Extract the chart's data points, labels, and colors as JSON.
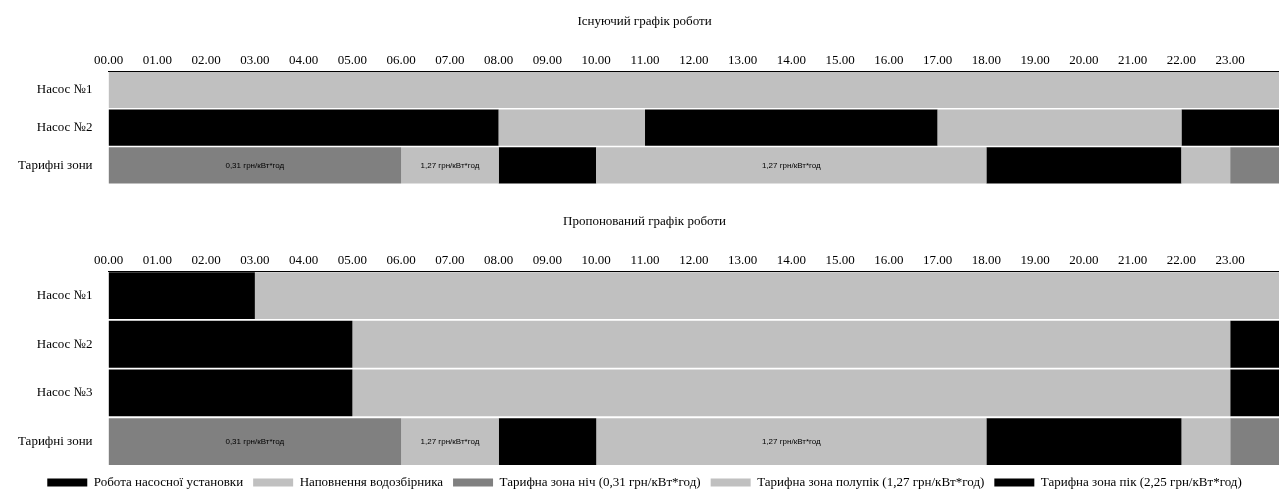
{
  "chart_data": [
    {
      "type": "bar",
      "orientation": "horizontal",
      "title": "Існуючий графік роботи",
      "categories": [
        "Насос №1",
        "Насос №2",
        "Тарифні зони"
      ],
      "xlim": [
        0,
        24
      ],
      "xticks": [
        {
          "value": 0,
          "label": "00.00"
        },
        {
          "value": 1,
          "label": "01.00"
        },
        {
          "value": 2,
          "label": "02.00"
        },
        {
          "value": 3,
          "label": "03.00"
        },
        {
          "value": 4,
          "label": "04.00"
        },
        {
          "value": 5,
          "label": "05.00"
        },
        {
          "value": 6,
          "label": "06.00"
        },
        {
          "value": 7,
          "label": "07.00"
        },
        {
          "value": 8,
          "label": "08.00"
        },
        {
          "value": 9,
          "label": "09.00"
        },
        {
          "value": 10,
          "label": "10.00"
        },
        {
          "value": 11,
          "label": "11.00"
        },
        {
          "value": 12,
          "label": "12.00"
        },
        {
          "value": 13,
          "label": "13.00"
        },
        {
          "value": 14,
          "label": "14.00"
        },
        {
          "value": 15,
          "label": "15.00"
        },
        {
          "value": 16,
          "label": "16.00"
        },
        {
          "value": 17,
          "label": "17.00"
        },
        {
          "value": 18,
          "label": "18.00"
        },
        {
          "value": 19,
          "label": "19.00"
        },
        {
          "value": 20,
          "label": "20.00"
        },
        {
          "value": 21,
          "label": "21.00"
        },
        {
          "value": 22,
          "label": "22.00"
        },
        {
          "value": 23,
          "label": "23.00"
        }
      ],
      "annotations": [
        {
          "text": "0,31 грн/кВт*год",
          "x": 3,
          "y": "Тарифні зони"
        },
        {
          "text": "1,27 грн/кВт*год",
          "x": 7,
          "y": "Тарифні зони"
        },
        {
          "text": "1,27 грн/кВт*год",
          "x": 14,
          "y": "Тарифні зони"
        }
      ],
      "series": [
        {
          "color": "#c0c0c0",
          "values": [
            24,
            3,
            null
          ],
          "base": [
            0,
            8,
            null
          ]
        },
        {
          "color": "#c0c0c0",
          "values": [
            null,
            5,
            null
          ],
          "base": [
            null,
            17,
            null
          ]
        },
        {
          "color": "#000000",
          "values": [
            null,
            8,
            null
          ],
          "base": [
            null,
            0,
            null
          ]
        },
        {
          "color": "#000000",
          "values": [
            null,
            6,
            null
          ],
          "base": [
            null,
            11,
            null
          ]
        },
        {
          "color": "#000000",
          "values": [
            null,
            2,
            null
          ],
          "base": [
            null,
            22,
            null
          ]
        },
        {
          "color": "#808080",
          "values": [
            null,
            null,
            6
          ],
          "base": [
            null,
            null,
            0
          ]
        },
        {
          "color": "#808080",
          "values": [
            null,
            null,
            1
          ],
          "base": [
            null,
            null,
            23
          ]
        },
        {
          "color": "#c0c0c0",
          "values": [
            null,
            null,
            2
          ],
          "base": [
            null,
            null,
            6
          ]
        },
        {
          "color": "#c0c0c0",
          "values": [
            null,
            null,
            8
          ],
          "base": [
            null,
            null,
            10
          ]
        },
        {
          "color": "#c0c0c0",
          "values": [
            null,
            null,
            1
          ],
          "base": [
            null,
            null,
            22
          ]
        },
        {
          "color": "#000000",
          "values": [
            null,
            null,
            2
          ],
          "base": [
            null,
            null,
            8
          ]
        },
        {
          "color": "#000000",
          "values": [
            null,
            null,
            4
          ],
          "base": [
            null,
            null,
            18
          ]
        }
      ]
    },
    {
      "type": "bar",
      "orientation": "horizontal",
      "title": "Пропонований графік роботи",
      "categories": [
        "Насос №1",
        "Насос №2",
        "Насос №3",
        "Тарифні зони"
      ],
      "xlim": [
        0,
        24
      ],
      "xticks": [
        {
          "value": 0,
          "label": "00.00"
        },
        {
          "value": 1,
          "label": "01.00"
        },
        {
          "value": 2,
          "label": "02.00"
        },
        {
          "value": 3,
          "label": "03.00"
        },
        {
          "value": 4,
          "label": "04.00"
        },
        {
          "value": 5,
          "label": "05.00"
        },
        {
          "value": 6,
          "label": "06.00"
        },
        {
          "value": 7,
          "label": "07.00"
        },
        {
          "value": 8,
          "label": "08.00"
        },
        {
          "value": 9,
          "label": "09.00"
        },
        {
          "value": 10,
          "label": "10.00"
        },
        {
          "value": 11,
          "label": "11.00"
        },
        {
          "value": 12,
          "label": "12.00"
        },
        {
          "value": 13,
          "label": "13.00"
        },
        {
          "value": 14,
          "label": "14.00"
        },
        {
          "value": 15,
          "label": "15.00"
        },
        {
          "value": 16,
          "label": "16.00"
        },
        {
          "value": 17,
          "label": "17.00"
        },
        {
          "value": 18,
          "label": "18.00"
        },
        {
          "value": 19,
          "label": "19.00"
        },
        {
          "value": 20,
          "label": "20.00"
        },
        {
          "value": 21,
          "label": "21.00"
        },
        {
          "value": 22,
          "label": "22.00"
        },
        {
          "value": 23,
          "label": "23.00"
        }
      ],
      "legend": "bottom",
      "annotations": [
        {
          "text": "0,31 грн/кВт*год",
          "x": 3,
          "y": "Тарифні зони"
        },
        {
          "text": "1,27 грн/кВт*год",
          "x": 7,
          "y": "Тарифні зони"
        },
        {
          "text": "1,27 грн/кВт*год",
          "x": 14,
          "y": "Тарифні зони"
        }
      ],
      "series": [
        {
          "name": "Робота насосної установки",
          "color": "#000000",
          "values": [
            3,
            5,
            5,
            null
          ],
          "base": [
            0,
            0,
            0,
            null
          ]
        },
        {
          "name": "Наповнення водозбірника",
          "color": "#c0c0c0",
          "values": [
            21,
            18,
            18,
            null
          ],
          "base": [
            3,
            5,
            5,
            null
          ]
        },
        {
          "color": "#000000",
          "values": [
            null,
            1,
            1,
            null
          ],
          "base": [
            null,
            23,
            23,
            null
          ]
        },
        {
          "name": "Тарифна зона ніч (0,31 грн/кВт*год)",
          "color": "#808080",
          "values": [
            null,
            null,
            null,
            6
          ],
          "base": [
            null,
            null,
            null,
            0
          ]
        },
        {
          "name": "Тарифна зона полупік (1,27 грн/кВт*год)",
          "color": "#c0c0c0",
          "values": [
            null,
            null,
            null,
            2
          ],
          "base": [
            null,
            null,
            null,
            6
          ]
        },
        {
          "name": "Тарифна зона пік (2,25 грн/кВт*год)",
          "color": "#000000",
          "values": [
            null,
            null,
            null,
            2
          ],
          "base": [
            null,
            null,
            null,
            8
          ]
        },
        {
          "color": "#c0c0c0",
          "values": [
            null,
            null,
            null,
            8
          ],
          "base": [
            null,
            null,
            null,
            10
          ]
        },
        {
          "color": "#000000",
          "values": [
            null,
            null,
            null,
            4
          ],
          "base": [
            null,
            null,
            null,
            18
          ]
        },
        {
          "color": "#c0c0c0",
          "values": [
            null,
            null,
            null,
            1
          ],
          "base": [
            null,
            null,
            null,
            22
          ]
        },
        {
          "color": "#808080",
          "values": [
            null,
            null,
            null,
            1
          ],
          "base": [
            null,
            null,
            null,
            23
          ]
        }
      ]
    }
  ]
}
